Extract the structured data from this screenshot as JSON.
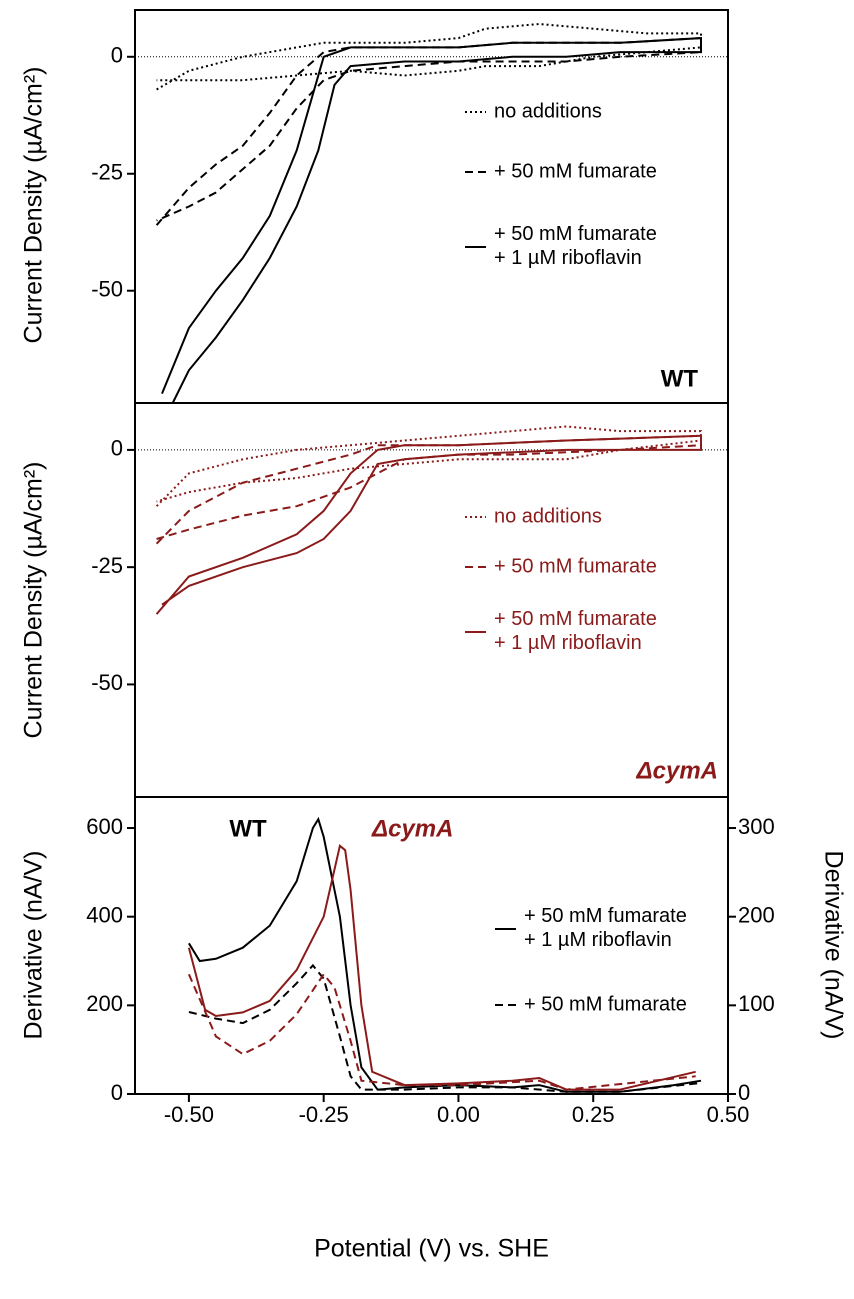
{
  "chart_data": [
    {
      "type": "line",
      "y_label": "Current Density (µA/cm²)",
      "xlim": [
        -0.6,
        0.5
      ],
      "ylim": [
        -74,
        10
      ],
      "yticks": [
        0,
        -25,
        -50
      ],
      "zero_line": true,
      "annotations": [
        {
          "text": "WT",
          "color": "#000000"
        }
      ],
      "series": [
        {
          "name": "no additions",
          "color": "#000000",
          "dash": "dotted",
          "x": [
            -0.56,
            -0.5,
            -0.4,
            -0.3,
            -0.25,
            -0.2,
            -0.1,
            0,
            0.05,
            0.15,
            0.25,
            0.35,
            0.45,
            0.45,
            0.35,
            0.25,
            0.15,
            0.05,
            0,
            -0.1,
            -0.2,
            -0.3,
            -0.4,
            -0.5,
            -0.56
          ],
          "values": [
            -7,
            -3,
            0,
            2,
            3,
            3,
            3,
            4,
            6,
            7,
            6,
            5,
            5,
            2,
            1,
            0,
            -2,
            -2,
            -3,
            -4,
            -3,
            -4,
            -5,
            -5,
            -5
          ]
        },
        {
          "name": "+ 50 mM fumarate",
          "color": "#000000",
          "dash": "dashed",
          "x": [
            -0.56,
            -0.5,
            -0.45,
            -0.4,
            -0.35,
            -0.3,
            -0.25,
            -0.2,
            -0.1,
            0,
            0.1,
            0.2,
            0.3,
            0.45,
            0.45,
            0.3,
            0.2,
            0.1,
            0,
            -0.1,
            -0.2,
            -0.25,
            -0.3,
            -0.35,
            -0.4,
            -0.45,
            -0.5,
            -0.56
          ],
          "values": [
            -36,
            -28,
            -23,
            -19,
            -12,
            -4,
            1,
            2,
            2,
            2,
            3,
            3,
            3,
            4,
            1,
            0,
            -1,
            -1,
            -1,
            -2,
            -3,
            -5,
            -11,
            -19,
            -24,
            -29,
            -32,
            -35
          ]
        },
        {
          "name": "+ 50 mM fumarate\n+ 1 µM riboflavin",
          "color": "#000000",
          "dash": "solid",
          "x": [
            -0.55,
            -0.5,
            -0.45,
            -0.4,
            -0.35,
            -0.3,
            -0.27,
            -0.25,
            -0.2,
            -0.1,
            0,
            0.1,
            0.2,
            0.3,
            0.45,
            0.45,
            0.3,
            0.2,
            0.1,
            0,
            -0.1,
            -0.2,
            -0.23,
            -0.26,
            -0.3,
            -0.35,
            -0.4,
            -0.45,
            -0.5,
            -0.53
          ],
          "values": [
            -72,
            -58,
            -50,
            -43,
            -34,
            -20,
            -8,
            0,
            2,
            2,
            2,
            3,
            3,
            3,
            4,
            1,
            1,
            0,
            0,
            -1,
            -1,
            -2,
            -6,
            -20,
            -32,
            -43,
            -52,
            -60,
            -67,
            -74
          ]
        }
      ]
    },
    {
      "type": "line",
      "y_label": "Current Density (µA/cm²)",
      "xlim": [
        -0.6,
        0.5
      ],
      "ylim": [
        -74,
        10
      ],
      "yticks": [
        0,
        -25,
        -50
      ],
      "zero_line": true,
      "annotations": [
        {
          "text": "ΔcymA",
          "color": "#8b1a1a"
        }
      ],
      "series": [
        {
          "name": "no additions",
          "color": "#8b1a1a",
          "dash": "dotted",
          "x": [
            -0.56,
            -0.5,
            -0.4,
            -0.3,
            -0.2,
            -0.1,
            0,
            0.1,
            0.2,
            0.3,
            0.45,
            0.45,
            0.3,
            0.2,
            0.1,
            0,
            -0.1,
            -0.2,
            -0.3,
            -0.4,
            -0.5,
            -0.56
          ],
          "values": [
            -12,
            -5,
            -2,
            0,
            1,
            2,
            3,
            4,
            5,
            4,
            4,
            2,
            0,
            -2,
            -2,
            -2,
            -3,
            -4,
            -6,
            -7,
            -9,
            -11
          ]
        },
        {
          "name": "+ 50 mM fumarate",
          "color": "#8b1a1a",
          "dash": "dashed",
          "x": [
            -0.56,
            -0.5,
            -0.4,
            -0.3,
            -0.2,
            -0.15,
            -0.1,
            0,
            0.2,
            0.45,
            0.45,
            0.3,
            0.1,
            0,
            -0.1,
            -0.2,
            -0.3,
            -0.4,
            -0.5,
            -0.56
          ],
          "values": [
            -20,
            -13,
            -7,
            -4,
            -1,
            1,
            1,
            1,
            2,
            3,
            1,
            0,
            -1,
            -1,
            -2,
            -8,
            -12,
            -14,
            -17,
            -19
          ]
        },
        {
          "name": "+ 50 mM fumarate\n+ 1 µM riboflavin",
          "color": "#8b1a1a",
          "dash": "solid",
          "x": [
            -0.56,
            -0.5,
            -0.4,
            -0.3,
            -0.25,
            -0.2,
            -0.15,
            -0.1,
            0,
            0.2,
            0.45,
            0.45,
            0.2,
            0,
            -0.1,
            -0.15,
            -0.2,
            -0.25,
            -0.3,
            -0.4,
            -0.5,
            -0.55
          ],
          "values": [
            -35,
            -27,
            -23,
            -18,
            -13,
            -5,
            0,
            1,
            1,
            2,
            3,
            0,
            0,
            -1,
            -2,
            -3,
            -13,
            -19,
            -22,
            -25,
            -29,
            -33
          ]
        }
      ]
    },
    {
      "type": "line",
      "x_label": "Potential (V) vs. SHE",
      "y_label": "Derivative (nA/V)",
      "y2_label": "Derivative (nA/V)",
      "xlim": [
        -0.6,
        0.5
      ],
      "ylim": [
        0,
        670
      ],
      "y2lim": [
        0,
        335
      ],
      "xticks": [
        {
          "value": -0.5,
          "label": "-0.50"
        },
        {
          "value": -0.25,
          "label": "-0.25"
        },
        {
          "value": 0,
          "label": "0.00"
        },
        {
          "value": 0.25,
          "label": "0.25"
        },
        {
          "value": 0.5,
          "label": "0.50"
        }
      ],
      "yticks": [
        0,
        200,
        400,
        600
      ],
      "y2ticks": [
        0,
        100,
        200,
        300
      ],
      "annotations": [
        {
          "text": "WT",
          "color": "#000000"
        },
        {
          "text": "ΔcymA",
          "color": "#8b1a1a"
        }
      ],
      "legend": [
        "+ 50 mM fumarate\n+ 1 µM riboflavin",
        "+ 50 mM fumarate"
      ],
      "series": [
        {
          "color": "#000000",
          "dash": "solid",
          "x": [
            -0.5,
            -0.48,
            -0.45,
            -0.4,
            -0.35,
            -0.3,
            -0.27,
            -0.26,
            -0.25,
            -0.22,
            -0.2,
            -0.18,
            -0.15,
            -0.1,
            0,
            0.1,
            0.15,
            0.2,
            0.3,
            0.4,
            0.45
          ],
          "values": [
            340,
            300,
            305,
            330,
            380,
            480,
            600,
            620,
            580,
            400,
            200,
            60,
            10,
            15,
            20,
            15,
            20,
            5,
            5,
            20,
            30
          ]
        },
        {
          "color": "#000000",
          "dash": "dashed",
          "x": [
            -0.5,
            -0.45,
            -0.4,
            -0.35,
            -0.3,
            -0.27,
            -0.25,
            -0.22,
            -0.2,
            -0.18,
            -0.1,
            0,
            0.1,
            0.2,
            0.3,
            0.45
          ],
          "values": [
            185,
            170,
            160,
            190,
            250,
            290,
            260,
            130,
            40,
            10,
            10,
            15,
            15,
            5,
            5,
            25
          ]
        },
        {
          "color": "#8b1a1a",
          "dash": "solid",
          "axis": "y2",
          "x": [
            -0.5,
            -0.47,
            -0.45,
            -0.4,
            -0.35,
            -0.3,
            -0.25,
            -0.22,
            -0.21,
            -0.2,
            -0.18,
            -0.16,
            -0.1,
            0,
            0.1,
            0.15,
            0.2,
            0.3,
            0.44
          ],
          "values": [
            165,
            95,
            88,
            92,
            105,
            140,
            200,
            280,
            275,
            230,
            100,
            25,
            10,
            12,
            15,
            18,
            5,
            5,
            25
          ]
        },
        {
          "color": "#8b1a1a",
          "dash": "dashed",
          "axis": "y2",
          "x": [
            -0.5,
            -0.45,
            -0.4,
            -0.35,
            -0.3,
            -0.25,
            -0.23,
            -0.2,
            -0.18,
            -0.1,
            0,
            0.15,
            0.2,
            0.44
          ],
          "values": [
            135,
            65,
            45,
            60,
            90,
            135,
            120,
            60,
            15,
            10,
            10,
            15,
            5,
            20
          ]
        }
      ]
    }
  ]
}
